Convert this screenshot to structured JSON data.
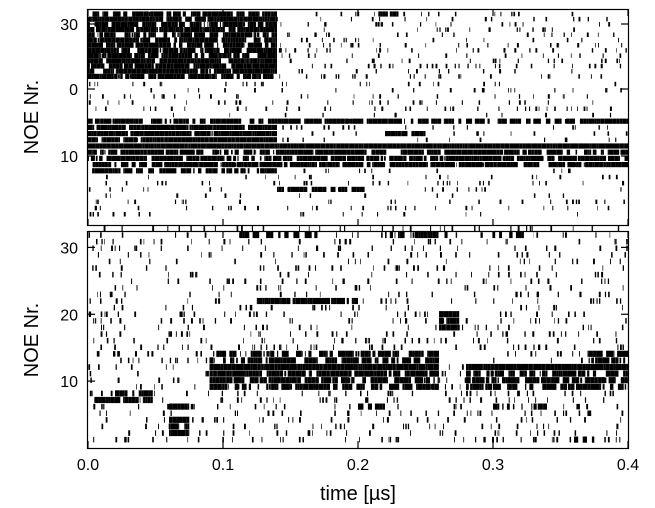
{
  "chart_data": [
    {
      "type": "raster",
      "panel": "top",
      "title": "",
      "xlabel": "",
      "ylabel": "NOE Nr.",
      "xlim": [
        0.0,
        0.4
      ],
      "yticks": [
        {
          "value": 30,
          "label": "30"
        },
        {
          "value": 0,
          "label": "0"
        },
        {
          "value": 10,
          "label": "10"
        }
      ],
      "grid": false,
      "legend": "none",
      "dense_segments": [
        {
          "row": 34,
          "start": 0.0,
          "end": 0.14,
          "density": 0.85
        },
        {
          "row": 33,
          "start": 0.0,
          "end": 0.14,
          "density": 0.9
        },
        {
          "row": 32,
          "start": 0.0,
          "end": 0.14,
          "density": 0.8
        },
        {
          "row": 31,
          "start": 0.0,
          "end": 0.14,
          "density": 0.9
        },
        {
          "row": 30,
          "start": 0.0,
          "end": 0.14,
          "density": 0.8
        },
        {
          "row": 29,
          "start": 0.0,
          "end": 0.14,
          "density": 0.85
        },
        {
          "row": 28,
          "start": 0.0,
          "end": 0.14,
          "density": 0.75
        },
        {
          "row": 27,
          "start": 0.0,
          "end": 0.14,
          "density": 0.9
        },
        {
          "row": 26,
          "start": 0.0,
          "end": 0.14,
          "density": 0.8
        },
        {
          "row": 25,
          "start": 0.0,
          "end": 0.14,
          "density": 0.85
        },
        {
          "row": 24,
          "start": 0.0,
          "end": 0.14,
          "density": 0.9
        },
        {
          "row": 23,
          "start": 0.0,
          "end": 0.14,
          "density": 0.85
        },
        {
          "row": 22,
          "start": 0.0,
          "end": 0.14,
          "density": 0.8
        },
        {
          "row": 34,
          "start": 0.215,
          "end": 0.23,
          "density": 0.9
        },
        {
          "row": 6,
          "start": 0.0,
          "end": 0.4,
          "density": 0.75
        },
        {
          "row": 7,
          "start": 0.0,
          "end": 0.14,
          "density": 0.95
        },
        {
          "row": 8,
          "start": 0.0,
          "end": 0.14,
          "density": 0.95
        },
        {
          "row": 8,
          "start": 0.22,
          "end": 0.25,
          "density": 0.8
        },
        {
          "row": 9,
          "start": 0.0,
          "end": 0.14,
          "density": 0.95
        },
        {
          "row": 10,
          "start": 0.0,
          "end": 0.4,
          "density": 1.0
        },
        {
          "row": 11,
          "start": 0.0,
          "end": 0.4,
          "density": 0.8
        },
        {
          "row": 12,
          "start": 0.0,
          "end": 0.4,
          "density": 0.85
        },
        {
          "row": 13,
          "start": 0.0,
          "end": 0.4,
          "density": 0.8
        },
        {
          "row": 14,
          "start": 0.0,
          "end": 0.14,
          "density": 0.6
        },
        {
          "row": 17,
          "start": 0.14,
          "end": 0.205,
          "density": 0.7
        }
      ]
    },
    {
      "type": "raster",
      "panel": "bottom",
      "title": "",
      "xlabel": "time [µs]",
      "ylabel": "NOE Nr.",
      "xlim": [
        0.0,
        0.4
      ],
      "ylim": [
        0,
        32
      ],
      "xticks": [
        0.0,
        0.1,
        0.2,
        0.3,
        0.4
      ],
      "xtick_labels": [
        "0.0",
        "0.1",
        "0.2",
        "0.3",
        "0.4"
      ],
      "yticks": [
        10,
        20,
        30
      ],
      "ytick_labels": [
        "10",
        "20",
        "30"
      ],
      "grid": false,
      "legend": "none",
      "dense_segments": [
        {
          "row": 31,
          "start": 0.11,
          "end": 0.17,
          "density": 0.55
        },
        {
          "row": 31,
          "start": 0.22,
          "end": 0.27,
          "density": 0.7
        },
        {
          "row": 31,
          "start": 0.3,
          "end": 0.33,
          "density": 0.6
        },
        {
          "row": 21,
          "start": 0.125,
          "end": 0.2,
          "density": 0.8
        },
        {
          "row": 19,
          "start": 0.26,
          "end": 0.275,
          "density": 0.95
        },
        {
          "row": 18,
          "start": 0.26,
          "end": 0.275,
          "density": 0.95
        },
        {
          "row": 17,
          "start": 0.26,
          "end": 0.275,
          "density": 0.95
        },
        {
          "row": 13,
          "start": 0.095,
          "end": 0.11,
          "density": 0.8
        },
        {
          "row": 13,
          "start": 0.115,
          "end": 0.26,
          "density": 0.65
        },
        {
          "row": 13,
          "start": 0.37,
          "end": 0.4,
          "density": 0.7
        },
        {
          "row": 12,
          "start": 0.09,
          "end": 0.26,
          "density": 0.75
        },
        {
          "row": 12,
          "start": 0.37,
          "end": 0.4,
          "density": 0.6
        },
        {
          "row": 11,
          "start": 0.09,
          "end": 0.26,
          "density": 1.0
        },
        {
          "row": 11,
          "start": 0.28,
          "end": 0.4,
          "density": 1.0
        },
        {
          "row": 10,
          "start": 0.09,
          "end": 0.26,
          "density": 0.85
        },
        {
          "row": 10,
          "start": 0.28,
          "end": 0.4,
          "density": 0.7
        },
        {
          "row": 9,
          "start": 0.09,
          "end": 0.26,
          "density": 0.8
        },
        {
          "row": 9,
          "start": 0.28,
          "end": 0.4,
          "density": 0.7
        },
        {
          "row": 8,
          "start": 0.09,
          "end": 0.26,
          "density": 0.75
        },
        {
          "row": 8,
          "start": 0.28,
          "end": 0.4,
          "density": 0.55
        },
        {
          "row": 7,
          "start": 0.02,
          "end": 0.048,
          "density": 0.9
        },
        {
          "row": 6,
          "start": 0.005,
          "end": 0.048,
          "density": 0.9
        },
        {
          "row": 5,
          "start": 0.06,
          "end": 0.075,
          "density": 0.9
        },
        {
          "row": 3,
          "start": 0.06,
          "end": 0.075,
          "density": 0.95
        },
        {
          "row": 2,
          "start": 0.06,
          "end": 0.075,
          "density": 0.95
        },
        {
          "row": 1,
          "start": 0.06,
          "end": 0.075,
          "density": 0.95
        },
        {
          "row": 5,
          "start": 0.2,
          "end": 0.22,
          "density": 0.6
        },
        {
          "row": 5,
          "start": 0.3,
          "end": 0.34,
          "density": 0.5
        },
        {
          "row": 0,
          "start": 0.36,
          "end": 0.375,
          "density": 0.7
        }
      ]
    }
  ]
}
